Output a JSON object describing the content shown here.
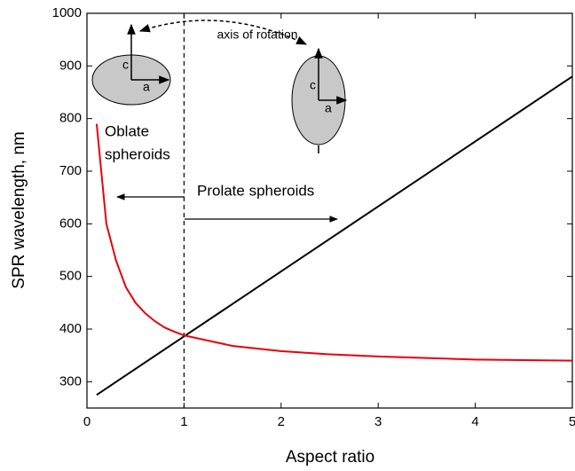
{
  "chart_data": {
    "type": "line",
    "x_label": "Aspect ratio",
    "y_label": "SPR wavelength, nm",
    "xlim": [
      0,
      5
    ],
    "xticks": [
      0,
      1,
      2,
      3,
      4,
      5
    ],
    "ylim": [
      250,
      1000
    ],
    "yticks": [
      300,
      400,
      500,
      600,
      700,
      800,
      900,
      1000
    ],
    "vline_x": 1,
    "series": [
      {
        "color": "#000000",
        "x": [
          0.1,
          5
        ],
        "values": [
          275,
          880
        ]
      },
      {
        "color": "#e8000b",
        "x": [
          0.1,
          0.2,
          0.3,
          0.4,
          0.5,
          0.6,
          0.7,
          0.8,
          0.9,
          1,
          1.5,
          2,
          2.5,
          3,
          3.5,
          4,
          4.5,
          5
        ],
        "values": [
          790,
          600,
          530,
          480,
          450,
          430,
          415,
          403,
          395,
          388,
          368,
          358,
          352,
          348,
          345,
          342,
          341,
          340
        ]
      }
    ],
    "annotations": [
      "axis of rotation",
      "Oblate",
      "spheroids",
      "Prolate spheroids",
      "c",
      "a",
      "c",
      "a"
    ]
  }
}
